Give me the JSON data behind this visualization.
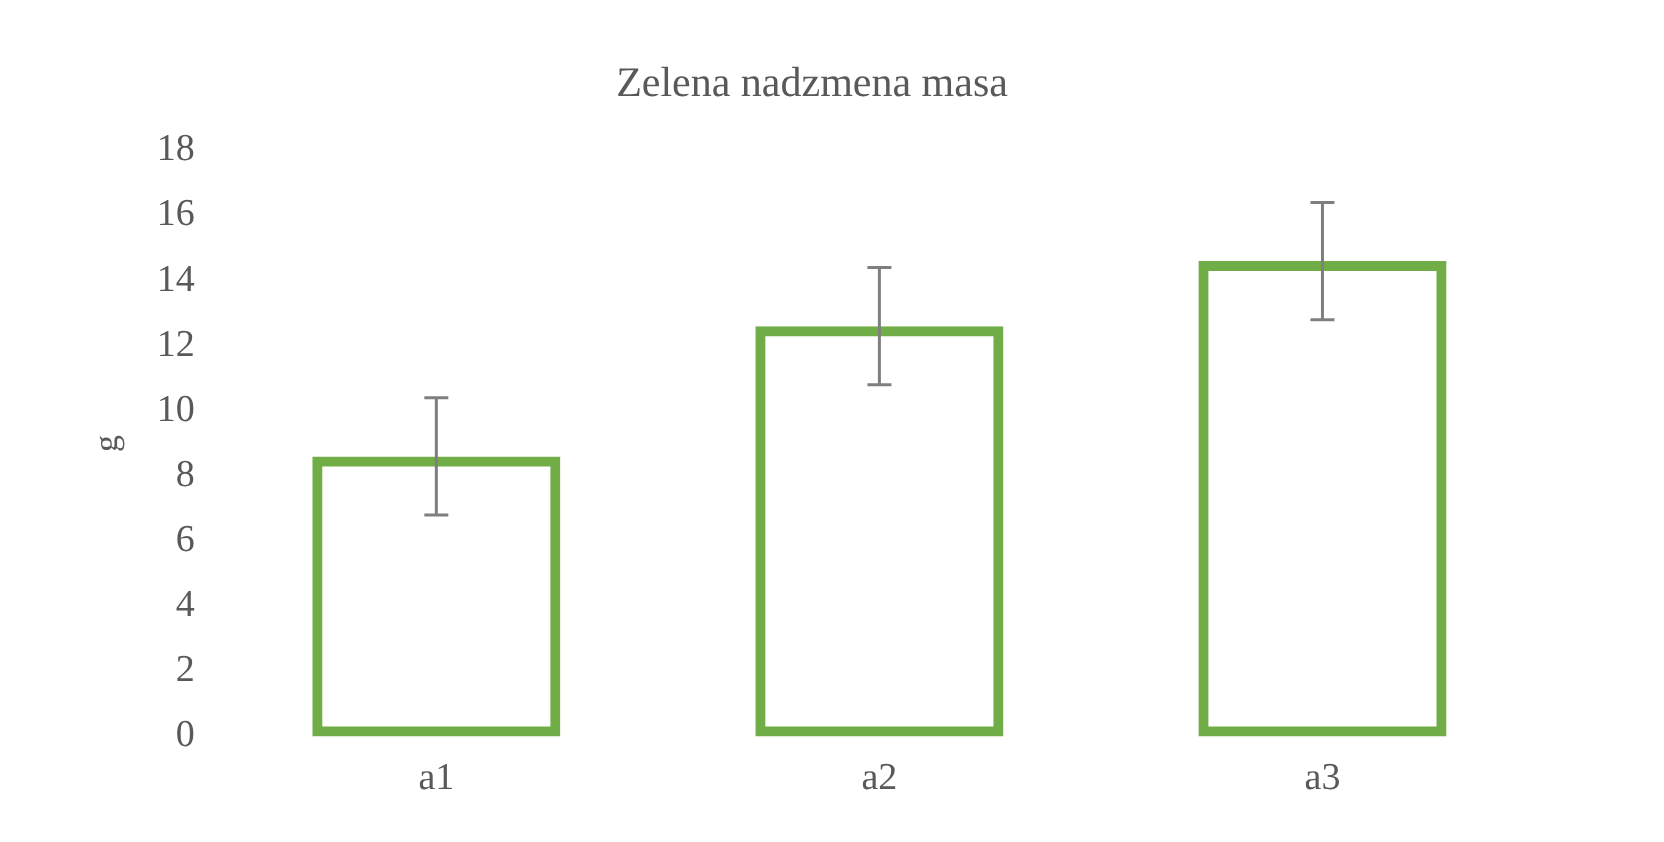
{
  "chart_data": {
    "type": "bar",
    "title": "Zelena nadzmena masa",
    "ylabel": "g",
    "categories": [
      "a1",
      "a2",
      "a3"
    ],
    "series": [
      {
        "color": "#70ad47",
        "values": [
          8.6,
          12.6,
          14.6
        ],
        "errors": [
          1.8,
          1.8,
          1.8
        ]
      }
    ],
    "ylim": [
      0,
      18
    ],
    "yticks": [
      0,
      2,
      4,
      6,
      8,
      10,
      12,
      14,
      16,
      18
    ],
    "grid": false,
    "legend": false
  }
}
